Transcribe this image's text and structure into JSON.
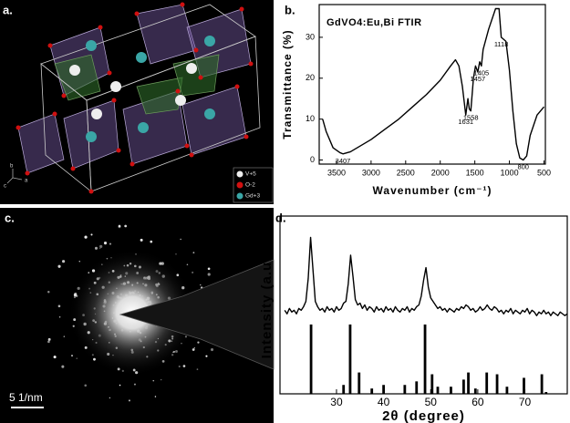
{
  "panels": {
    "a": {
      "label": "a.",
      "legend": [
        "V+5",
        "O-2",
        "Gd+3"
      ],
      "axes": [
        "b",
        "c",
        "a"
      ]
    },
    "b": {
      "label": "b."
    },
    "c": {
      "label": "c.",
      "scale_bar": "5 1/nm"
    },
    "d": {
      "label": "d."
    }
  },
  "chart_data": [
    {
      "type": "line",
      "title": "GdVO4:Eu,Bi FTIR",
      "x_label": "Wavenumber (cm⁻¹)",
      "y_label": "Transmittance (%)",
      "color": "#000000",
      "x": [
        3700,
        3650,
        3550,
        3450,
        3407,
        3300,
        3200,
        3000,
        2800,
        2600,
        2400,
        2200,
        2000,
        1850,
        1780,
        1730,
        1680,
        1631,
        1600,
        1580,
        1558,
        1520,
        1490,
        1457,
        1430,
        1405,
        1380,
        1300,
        1200,
        1150,
        1118,
        1050,
        1000,
        950,
        900,
        850,
        800,
        750,
        700,
        600,
        500
      ],
      "values": [
        10,
        7,
        3,
        1.8,
        1.5,
        2,
        3,
        5,
        7.5,
        10,
        13,
        16,
        19.5,
        23,
        24.5,
        23,
        18,
        11,
        15,
        12.5,
        12,
        20,
        23,
        21.5,
        24,
        23,
        27,
        32,
        37,
        37,
        30,
        29,
        22,
        12,
        4,
        0.5,
        0,
        1,
        6,
        11,
        13
      ],
      "annotations": [
        {
          "text": "3407",
          "x": 3407,
          "y": 1.5
        },
        {
          "text": "1631",
          "x": 1631,
          "y": 11
        },
        {
          "text": "1558",
          "x": 1558,
          "y": 12
        },
        {
          "text": "1457",
          "x": 1457,
          "y": 21.5
        },
        {
          "text": "1405",
          "x": 1405,
          "y": 23
        },
        {
          "text": "1118",
          "x": 1118,
          "y": 30
        },
        {
          "text": "800",
          "x": 800,
          "y": 0
        }
      ],
      "xlim": [
        3750,
        480
      ],
      "ylim": [
        -1,
        38
      ],
      "xticks": [
        3500,
        3000,
        2500,
        2000,
        1500,
        1000,
        500
      ],
      "yticks": [
        0,
        10,
        20,
        30
      ]
    },
    {
      "type": "line",
      "x_label": "2θ (degree)",
      "y_label": "Intensity (a.u.)",
      "color": "#000000",
      "x": [
        19,
        19.5,
        20,
        20.5,
        21,
        21.5,
        22,
        22.5,
        23,
        23.5,
        24,
        24.5,
        25,
        25.5,
        26,
        26.5,
        27,
        27.5,
        28,
        28.5,
        29,
        29.5,
        30,
        30.5,
        31,
        31.5,
        32,
        32.5,
        33,
        33.5,
        34,
        34.5,
        35,
        35.5,
        36,
        36.5,
        37,
        37.5,
        38,
        38.5,
        39,
        39.5,
        40,
        40.5,
        41,
        41.5,
        42,
        42.5,
        43,
        43.5,
        44,
        44.5,
        45,
        45.5,
        46,
        46.5,
        47,
        47.5,
        48,
        48.5,
        49,
        49.5,
        50,
        50.5,
        51,
        51.5,
        52,
        52.5,
        53,
        53.5,
        54,
        54.5,
        55,
        55.5,
        56,
        56.5,
        57,
        57.5,
        58,
        58.5,
        59,
        59.5,
        60,
        60.5,
        61,
        61.5,
        62,
        62.5,
        63,
        63.5,
        64,
        64.5,
        65,
        65.5,
        66,
        66.5,
        67,
        67.5,
        68,
        68.5,
        69,
        69.5,
        70,
        70.5,
        71,
        71.5,
        72,
        72.5,
        73,
        73.5,
        74,
        74.5,
        75,
        75.5,
        76,
        76.5,
        77,
        77.5,
        78,
        78.5,
        79
      ],
      "values": [
        47,
        45,
        48,
        46,
        47,
        45,
        48,
        47,
        49,
        52,
        65,
        88,
        70,
        52,
        49,
        47,
        48,
        46,
        49,
        47,
        48,
        46,
        49,
        47,
        48,
        51,
        52,
        62,
        78,
        66,
        53,
        50,
        51,
        48,
        50,
        47,
        49,
        48,
        46,
        49,
        47,
        48,
        46,
        49,
        47,
        48,
        46,
        49,
        47,
        46,
        48,
        47,
        49,
        46,
        48,
        47,
        49,
        50,
        55,
        64,
        71,
        60,
        54,
        52,
        50,
        48,
        49,
        47,
        48,
        46,
        48,
        47,
        46,
        48,
        47,
        49,
        48,
        50,
        49,
        47,
        48,
        46,
        47,
        49,
        47,
        48,
        50,
        48,
        47,
        49,
        48,
        46,
        47,
        45,
        47,
        46,
        48,
        45,
        47,
        46,
        45,
        47,
        46,
        48,
        45,
        47,
        46,
        44,
        46,
        45,
        47,
        45,
        46,
        44,
        46,
        45,
        44,
        46,
        45,
        44,
        45
      ],
      "sticks": {
        "x": [
          24.6,
          31.5,
          32.9,
          34.8,
          37.5,
          40,
          44.5,
          47,
          48.8,
          50.3,
          51.5,
          54.3,
          57,
          58,
          59.5,
          61.9,
          64.1,
          66.2,
          69.8,
          73.6,
          74.5
        ],
        "values": [
          39,
          5,
          39,
          12,
          3,
          5,
          5,
          7,
          39,
          11,
          4,
          4,
          8,
          12,
          3,
          12,
          11,
          4,
          9,
          11,
          1
        ]
      },
      "xlim": [
        18,
        79
      ],
      "ylim": [
        0,
        100
      ],
      "xticks": [
        30,
        40,
        50,
        60,
        70
      ]
    }
  ]
}
